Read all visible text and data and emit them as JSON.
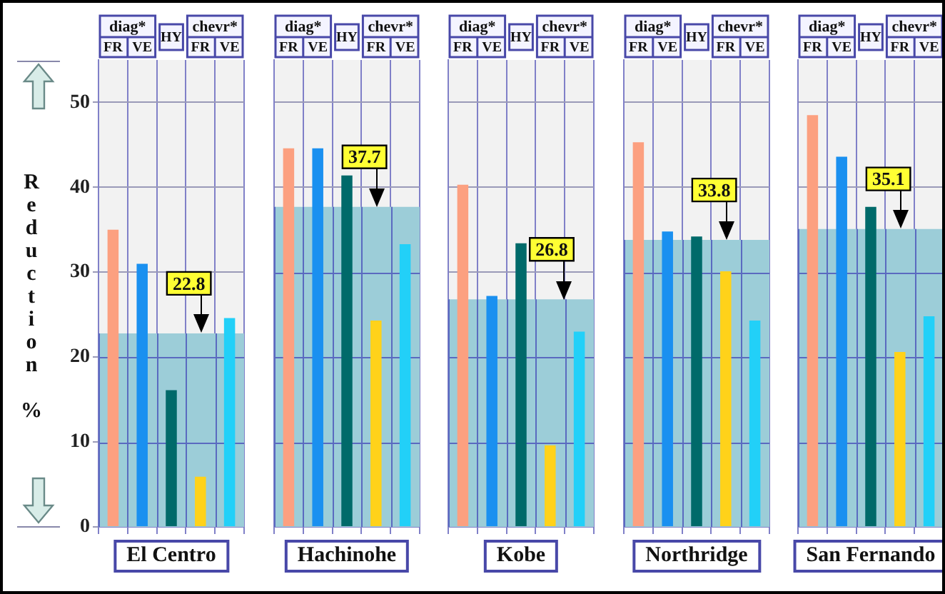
{
  "chart_data": [
    {
      "type": "bar",
      "xlabel": "El Centro",
      "ylabel": "Reduction %",
      "categories": [
        "FR",
        "VE",
        "HY",
        "FR",
        "VE"
      ],
      "values": [
        35.0,
        31.0,
        16.1,
        5.9,
        24.6
      ],
      "colors": [
        "#fca080",
        "#1a90f0",
        "#006a6a",
        "#ffd21a",
        "#22d0f8"
      ],
      "ylim": [
        0,
        55
      ],
      "yticks": [
        0,
        10,
        20,
        30,
        40,
        50
      ],
      "grid": true,
      "annotations": [
        "diag*",
        "chevr*"
      ],
      "bands": [
        {
          "axis": "y",
          "from": 0,
          "to": 22.8,
          "label": "22.8",
          "color": "#9ccdd8"
        }
      ]
    },
    {
      "type": "bar",
      "xlabel": "Hachinohe",
      "categories": [
        "FR",
        "VE",
        "HY",
        "FR",
        "VE"
      ],
      "values": [
        44.6,
        44.6,
        41.4,
        24.3,
        33.3
      ],
      "colors": [
        "#fca080",
        "#1a90f0",
        "#006a6a",
        "#ffd21a",
        "#22d0f8"
      ],
      "ylim": [
        0,
        55
      ],
      "yticks": [
        0,
        10,
        20,
        30,
        40,
        50
      ],
      "tick_labels": "x",
      "grid": true,
      "annotations": [
        "diag*",
        "chevr*"
      ],
      "bands": [
        {
          "axis": "y",
          "from": 0,
          "to": 37.7,
          "label": "37.7",
          "color": "#9ccdd8"
        }
      ]
    },
    {
      "type": "bar",
      "xlabel": "Kobe",
      "categories": [
        "FR",
        "VE",
        "HY",
        "FR",
        "VE"
      ],
      "values": [
        40.3,
        27.2,
        33.4,
        9.6,
        23.0
      ],
      "colors": [
        "#fca080",
        "#1a90f0",
        "#006a6a",
        "#ffd21a",
        "#22d0f8"
      ],
      "ylim": [
        0,
        55
      ],
      "yticks": [
        0,
        10,
        20,
        30,
        40,
        50
      ],
      "tick_labels": "x",
      "grid": true,
      "annotations": [
        "diag*",
        "chevr*"
      ],
      "bands": [
        {
          "axis": "y",
          "from": 0,
          "to": 26.8,
          "label": "26.8",
          "color": "#9ccdd8"
        }
      ]
    },
    {
      "type": "bar",
      "xlabel": "Northridge",
      "categories": [
        "FR",
        "VE",
        "HY",
        "FR",
        "VE"
      ],
      "values": [
        45.3,
        34.8,
        34.2,
        30.1,
        24.3
      ],
      "colors": [
        "#fca080",
        "#1a90f0",
        "#006a6a",
        "#ffd21a",
        "#22d0f8"
      ],
      "ylim": [
        0,
        55
      ],
      "yticks": [
        0,
        10,
        20,
        30,
        40,
        50
      ],
      "tick_labels": "x",
      "grid": true,
      "annotations": [
        "diag*",
        "chevr*"
      ],
      "bands": [
        {
          "axis": "y",
          "from": 0,
          "to": 33.8,
          "label": "33.8",
          "color": "#9ccdd8"
        }
      ]
    },
    {
      "type": "bar",
      "xlabel": "San Fernando",
      "categories": [
        "FR",
        "VE",
        "HY",
        "FR",
        "VE"
      ],
      "values": [
        48.5,
        43.6,
        37.7,
        20.6,
        24.8
      ],
      "colors": [
        "#fca080",
        "#1a90f0",
        "#006a6a",
        "#ffd21a",
        "#22d0f8"
      ],
      "ylim": [
        0,
        55
      ],
      "yticks": [
        0,
        10,
        20,
        30,
        40,
        50
      ],
      "tick_labels": "x",
      "grid": true,
      "annotations": [
        "diag*",
        "chevr*"
      ],
      "bands": [
        {
          "axis": "y",
          "from": 0,
          "to": 35.1,
          "label": "35.1",
          "color": "#9ccdd8"
        }
      ]
    }
  ]
}
